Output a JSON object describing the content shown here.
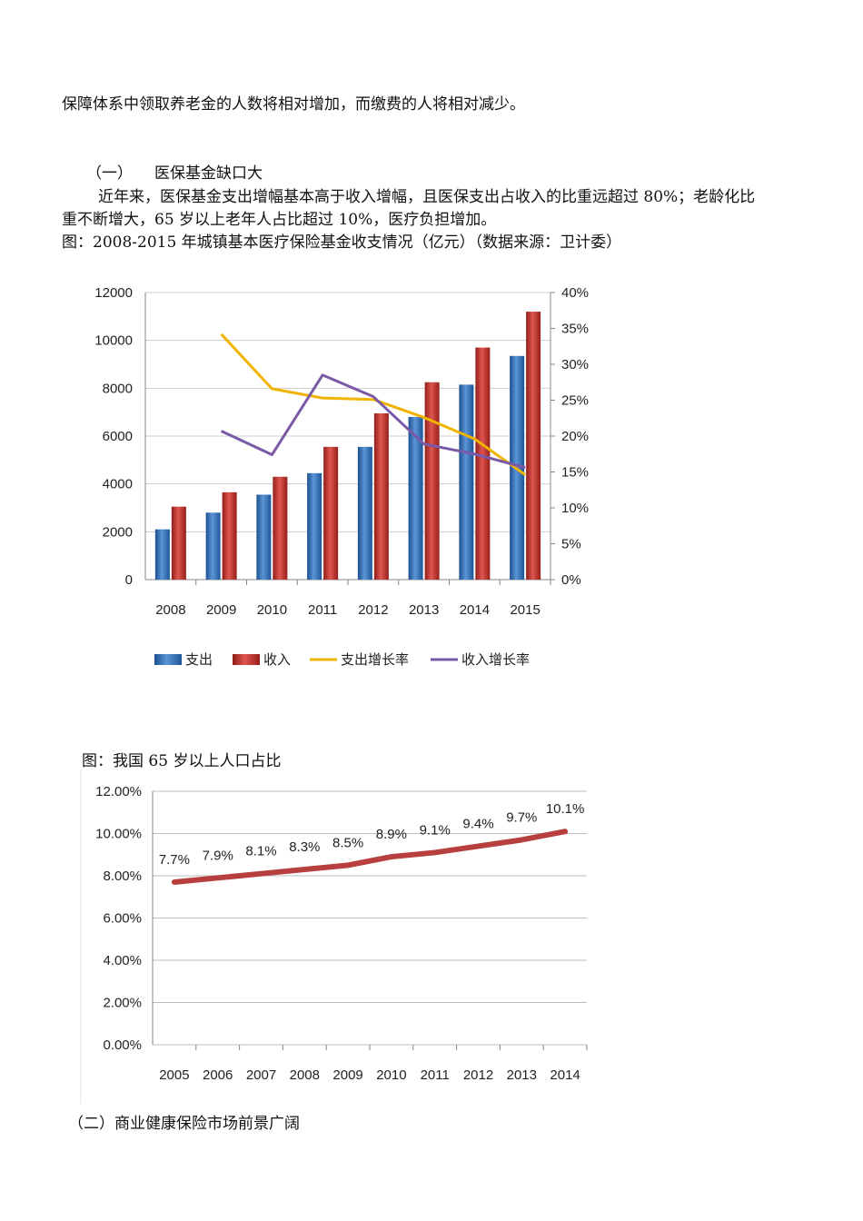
{
  "text": {
    "p1": "保障体系中领取养老金的人数将相对增加，而缴费的人将相对减少。",
    "s1_num": "（一）",
    "s1_title": "医保基金缺口大",
    "p2a": "近年来，医保基金支出增幅基本高于收入增幅，且医保支出占收入的比重远超过 80%；老龄化比",
    "p2b": "重不断增大，65 岁以上老年人占比超过 10%，医疗负担增加。",
    "cap1": "图：2008-2015 年城镇基本医疗保险基金收支情况（亿元）（数据来源：卫计委）",
    "cap2": "图：我国 65 岁以上人口占比",
    "s2": "（二）商业健康保险市场前景广阔"
  },
  "colors": {
    "expense": "#2e6db8",
    "income": "#c0302b",
    "expense_growth": "#f0b400",
    "income_growth": "#7a5aa6",
    "elderly_line": "#b7403e"
  },
  "chart_data": [
    {
      "type": "bar",
      "title": "2008-2015 年城镇基本医疗保险基金收支情况（亿元）",
      "categories": [
        "2008",
        "2009",
        "2010",
        "2011",
        "2012",
        "2013",
        "2014",
        "2015"
      ],
      "y_left_ticks": [
        "0",
        "2000",
        "4000",
        "6000",
        "8000",
        "10000",
        "12000"
      ],
      "y_right_ticks": [
        "0%",
        "5%",
        "10%",
        "15%",
        "20%",
        "25%",
        "30%",
        "35%",
        "40%"
      ],
      "ylim_left": [
        0,
        12000
      ],
      "ylim_right": [
        0,
        40
      ],
      "series": [
        {
          "name": "支出",
          "kind": "bar",
          "values": [
            2100,
            2800,
            3550,
            4450,
            5550,
            6800,
            8150,
            9350
          ]
        },
        {
          "name": "收入",
          "kind": "bar",
          "values": [
            3050,
            3650,
            4300,
            5550,
            6950,
            8250,
            9700,
            11200
          ]
        },
        {
          "name": "支出增长率",
          "kind": "line",
          "axis": "right",
          "values": [
            null,
            34.2,
            26.6,
            25.3,
            25.1,
            22.6,
            19.6,
            14.6
          ]
        },
        {
          "name": "收入增长率",
          "kind": "line",
          "axis": "right",
          "values": [
            null,
            20.7,
            17.4,
            28.5,
            25.5,
            18.9,
            17.5,
            15.6
          ]
        }
      ],
      "legend": [
        "支出",
        "收入",
        "支出增长率",
        "收入增长率"
      ]
    },
    {
      "type": "line",
      "title": "我国 65 岁以上人口占比",
      "categories": [
        "2005",
        "2006",
        "2007",
        "2008",
        "2009",
        "2010",
        "2011",
        "2012",
        "2013",
        "2014"
      ],
      "values": [
        7.7,
        7.9,
        8.1,
        8.3,
        8.5,
        8.9,
        9.1,
        9.4,
        9.7,
        10.1
      ],
      "data_labels": [
        "7.7%",
        "7.9%",
        "8.1%",
        "8.3%",
        "8.5%",
        "8.9%",
        "9.1%",
        "9.4%",
        "9.7%",
        "10.1%"
      ],
      "y_ticks": [
        "0.00%",
        "2.00%",
        "4.00%",
        "6.00%",
        "8.00%",
        "10.00%",
        "12.00%"
      ],
      "ylim": [
        0,
        12
      ]
    }
  ]
}
